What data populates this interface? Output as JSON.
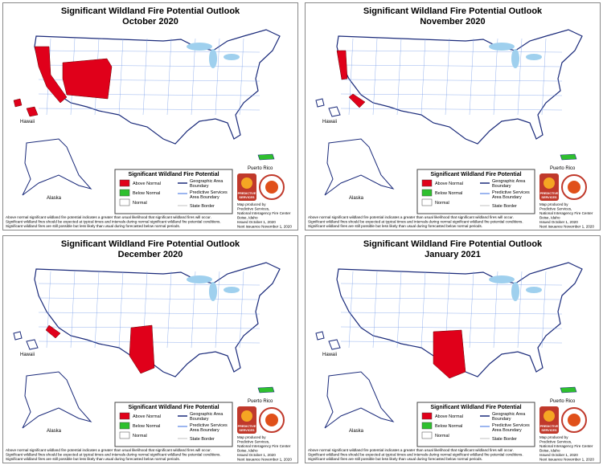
{
  "panels": [
    {
      "title": "Significant Wildland Fire Potential Outlook",
      "subtitle": "October 2020"
    },
    {
      "title": "Significant Wildland Fire Potential Outlook",
      "subtitle": "November 2020"
    },
    {
      "title": "Significant Wildland Fire Potential Outlook",
      "subtitle": "December 2020"
    },
    {
      "title": "Significant Wildland Fire Potential Outlook",
      "subtitle": "January 2021"
    }
  ],
  "labels": {
    "hawaii": "Hawaii",
    "alaska": "Alaska",
    "puerto_rico": "Puerto Rico"
  },
  "legend": {
    "title": "Significant Wildland Fire Potential",
    "above": "Above Normal",
    "below": "Below Normal",
    "normal": "Normal",
    "geo": [
      "Geographic Area",
      "Boundary"
    ],
    "psa": [
      "Predictive Services",
      "Area Boundary"
    ],
    "state": "State Border"
  },
  "logo": [
    "PREDICTIVE",
    "SERVICES"
  ],
  "credits": [
    "Map produced by",
    "Predictive Services,",
    "National Interagency Fire Center",
    "Boise, Idaho",
    "Issued October 1, 2020",
    "Next issuance November 1, 2020"
  ],
  "notes": [
    "Above normal significant wildland fire potential indicates a greater than usual likelihood that significant wildland fires will occur.",
    "Significant wildland fires should be expected at typical times and intervals during normal significant wildland fire potential conditions.",
    "Significant wildland fires are still possible but less likely than usual during forecasted below normal periods."
  ]
}
